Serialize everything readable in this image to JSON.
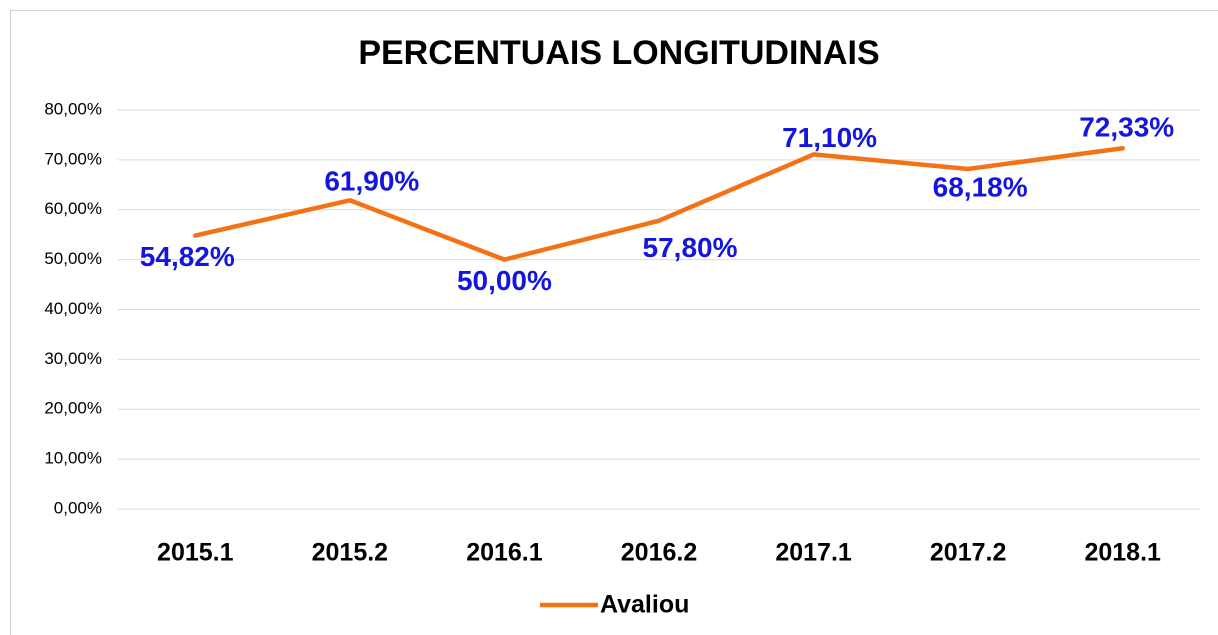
{
  "chart_data": {
    "type": "line",
    "title": "PERCENTUAIS LONGITUDINAIS",
    "categories": [
      "2015.1",
      "2015.2",
      "2016.1",
      "2016.2",
      "2017.1",
      "2017.2",
      "2018.1"
    ],
    "series": [
      {
        "name": "Avaliou",
        "color": "#f47216",
        "values": [
          54.82,
          61.9,
          50,
          57.8,
          71.1,
          68.18,
          72.33
        ],
        "value_labels": [
          "54,82%",
          "61,90%",
          "50,00%",
          "57,80%",
          "71,10%",
          "68,18%",
          "72,33%"
        ]
      }
    ],
    "ylim": [
      0,
      80
    ],
    "yticks": [
      {
        "value": 0,
        "label": "0,00%"
      },
      {
        "value": 10,
        "label": "10,00%"
      },
      {
        "value": 20,
        "label": "20,00%"
      },
      {
        "value": 30,
        "label": "30,00%"
      },
      {
        "value": 40,
        "label": "40,00%"
      },
      {
        "value": 50,
        "label": "50,00%"
      },
      {
        "value": 60,
        "label": "60,00%"
      },
      {
        "value": 70,
        "label": "70,00%"
      },
      {
        "value": 80,
        "label": "80,00%"
      }
    ],
    "grid": true,
    "legend": "bottom",
    "value_label_color": "#1515e0"
  }
}
